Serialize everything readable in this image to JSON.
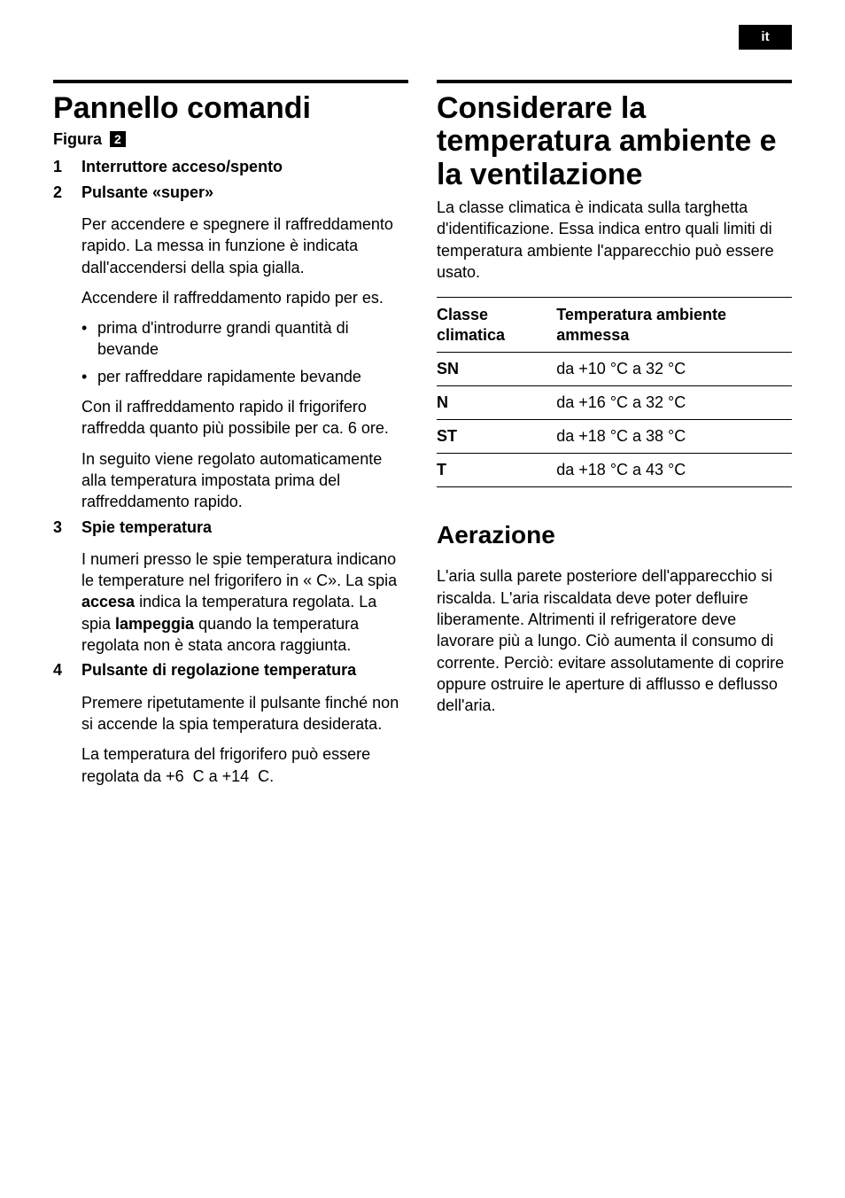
{
  "lang_tab": "it",
  "left": {
    "title": "Pannello comandi",
    "figura_label": "Figura",
    "figura_num": "2",
    "items": [
      {
        "num": "1",
        "head": "Interruttore acceso/spento",
        "paras": [],
        "bullets": []
      },
      {
        "num": "2",
        "head": "Pulsante «super»",
        "paras": [
          "Per accendere e spegnere il raffreddamento rapido. La messa in funzione è indicata dall'accendersi della spia gialla.",
          "Accendere il raffreddamento rapido per es."
        ],
        "bullets": [
          "prima d'introdurre grandi quantità di bevande",
          "per raffreddare rapidamente bevande"
        ],
        "paras_after": [
          "Con il raffreddamento rapido il frigorifero raffredda quanto più possibile per ca. 6 ore.",
          "In seguito viene regolato automaticamente alla temperatura impostata prima del raffreddamento rapido."
        ]
      },
      {
        "num": "3",
        "head": "Spie temperatura",
        "html": "I numeri presso le spie temperatura indicano le temperature nel frigorifero in « C». La spia <b>accesa</b> indica la temperatura regolata. La spia <b>lampeggia</b> quando la temperatura regolata non è stata ancora raggiunta."
      },
      {
        "num": "4",
        "head": "Pulsante di regolazione temperatura",
        "paras": [
          "Premere ripetutamente il pulsante finché non si accende la spia temperatura desiderata.",
          "La temperatura del frigorifero può essere regolata da +6  C a +14  C."
        ]
      }
    ]
  },
  "right": {
    "title": "Considerare la temperatura ambiente e la ventilazione",
    "intro": "La classe climatica è indicata sulla targhetta d'identificazione. Essa indica entro quali limiti di temperatura ambiente l'apparecchio può essere usato.",
    "table": {
      "col1": "Classe climatica",
      "col2": "Temperatura ambiente ammessa",
      "rows": [
        {
          "c": "SN",
          "t": "da +10 °C a 32 °C"
        },
        {
          "c": "N",
          "t": "da +16 °C a 32 °C"
        },
        {
          "c": "ST",
          "t": "da +18 °C a 38 °C"
        },
        {
          "c": "T",
          "t": "da +18 °C a 43 °C"
        }
      ]
    },
    "aer_title": "Aerazione",
    "aer_body": "L'aria sulla parete posteriore dell'apparecchio si riscalda. L'aria riscaldata deve poter defluire liberamente. Altrimenti il refrigeratore deve lavorare più a lungo. Ciò aumenta il consumo di corrente. Perciò: evitare assolutamente di coprire oppure ostruire le aperture di afflusso e deflusso dell'aria."
  }
}
